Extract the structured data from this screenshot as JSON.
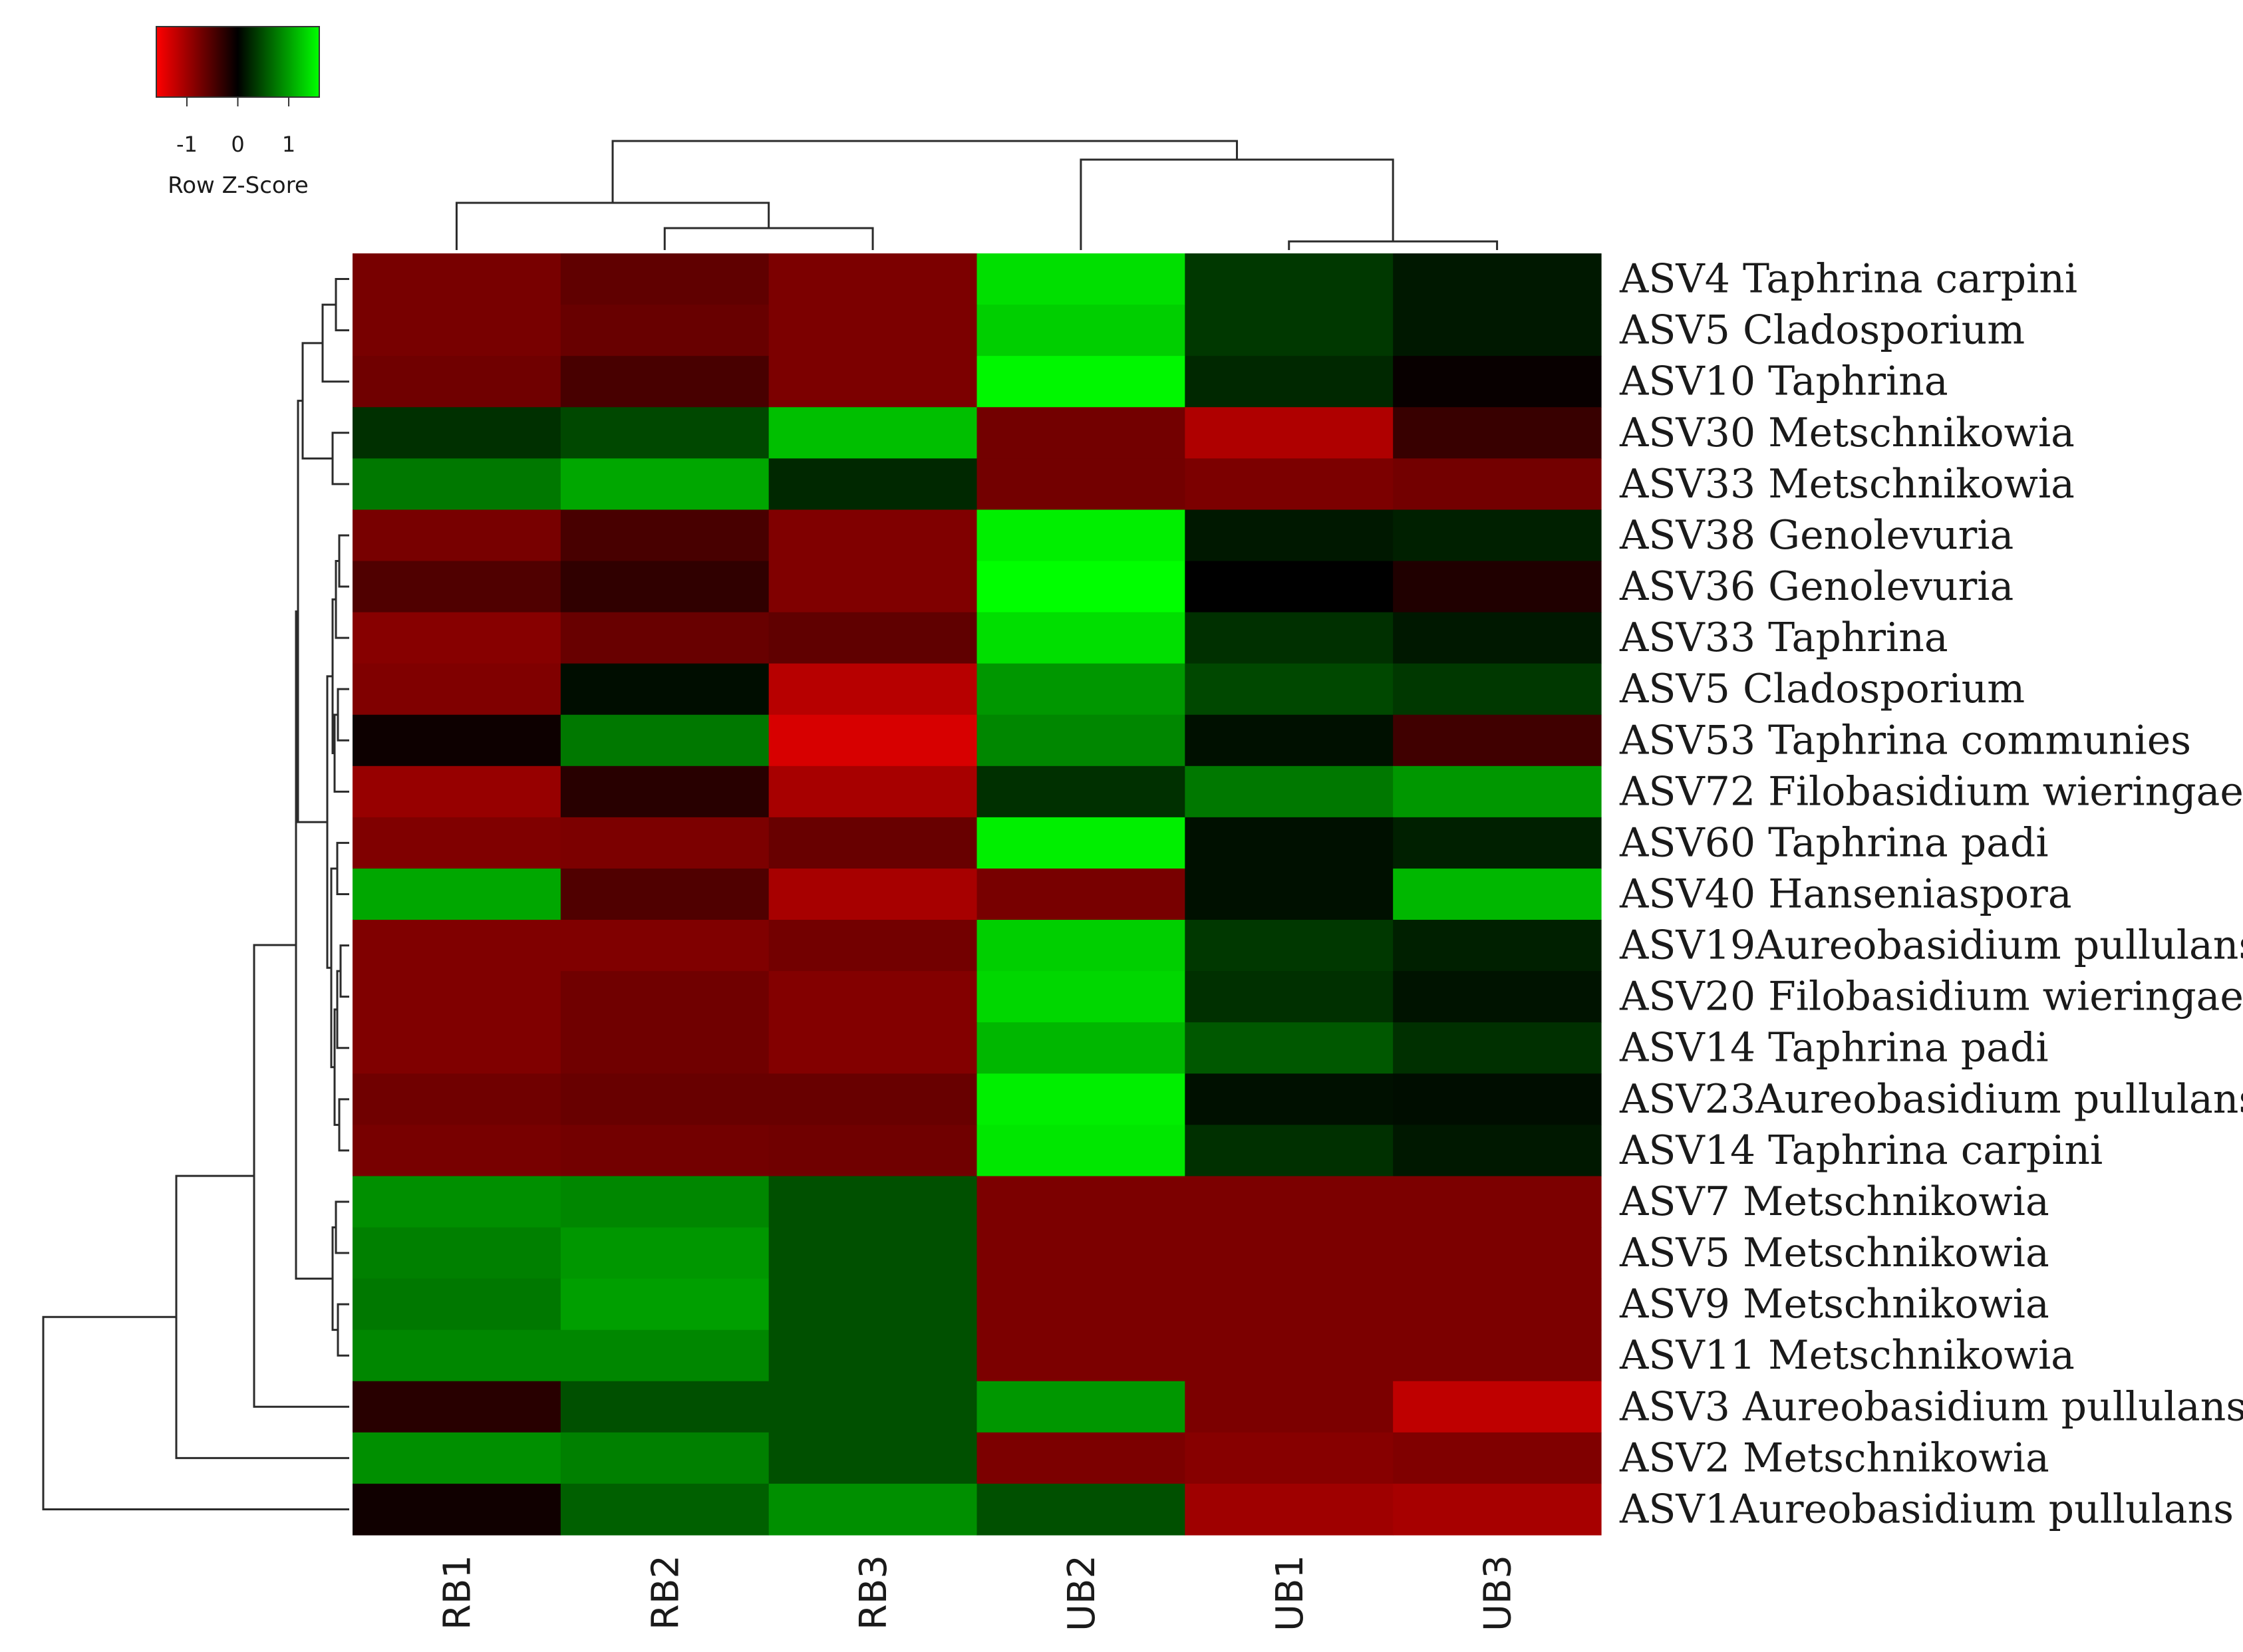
{
  "chart_data": {
    "type": "heatmap",
    "color_key": {
      "title": "Row Z-Score",
      "ticks": [
        "-1",
        "0",
        "1"
      ],
      "low_color": "#ff0000",
      "mid_color": "#000000",
      "high_color": "#00ff00",
      "range": [
        -1.6,
        1.6
      ]
    },
    "columns": [
      "RB1",
      "RB2",
      "RB3",
      "UB2",
      "UB1",
      "UB3"
    ],
    "rows": [
      "ASV4 Taphrina carpini",
      "ASV5 Cladosporium",
      "ASV10 Taphrina",
      "ASV30 Metschnikowia",
      "ASV33 Metschnikowia",
      "ASV38 Genolevuria",
      "ASV36 Genolevuria",
      "ASV33 Taphrina",
      "ASV5 Cladosporium",
      "ASV53 Taphrina communies",
      "ASV72 Filobasidium wieringae",
      "ASV60 Taphrina padi",
      "ASV40 Hanseniaspora",
      "ASV19Aureobasidium pullulans",
      "ASV20 Filobasidium wieringae",
      "ASV14 Taphrina padi",
      "ASV23Aureobasidium pullulans",
      "ASV14 Taphrina carpini",
      "ASV7 Metschnikowia",
      "ASV5 Metschnikowia",
      "ASV9 Metschnikowia",
      "ASV11 Metschnikowia",
      "ASV3 Aureobasidium pullulans",
      "ASV2 Metschnikowia",
      "ASV1Aureobasidium pullulans"
    ],
    "values": [
      [
        -0.75,
        -0.6,
        -0.78,
        1.4,
        0.35,
        0.15
      ],
      [
        -0.75,
        -0.65,
        -0.78,
        1.3,
        0.35,
        0.15
      ],
      [
        -0.7,
        -0.45,
        -0.78,
        1.55,
        0.25,
        -0.05
      ],
      [
        0.3,
        0.45,
        1.2,
        -0.72,
        -1.1,
        -0.35
      ],
      [
        0.75,
        1.05,
        0.25,
        -0.72,
        -0.78,
        -0.72
      ],
      [
        -0.75,
        -0.45,
        -0.8,
        1.5,
        0.15,
        0.2
      ],
      [
        -0.5,
        -0.3,
        -0.8,
        1.6,
        0.0,
        -0.2
      ],
      [
        -0.85,
        -0.65,
        -0.6,
        1.4,
        0.3,
        0.15
      ],
      [
        -0.8,
        0.08,
        -1.15,
        0.95,
        0.45,
        0.35
      ],
      [
        -0.08,
        0.75,
        -1.35,
        0.85,
        0.1,
        -0.4
      ],
      [
        -0.95,
        -0.25,
        -1.05,
        0.3,
        0.75,
        0.95
      ],
      [
        -0.8,
        -0.78,
        -0.65,
        1.5,
        0.1,
        0.2
      ],
      [
        1.05,
        -0.5,
        -1.05,
        -0.75,
        0.1,
        1.15
      ],
      [
        -0.8,
        -0.8,
        -0.72,
        1.3,
        0.35,
        0.2
      ],
      [
        -0.8,
        -0.7,
        -0.82,
        1.35,
        0.3,
        0.12
      ],
      [
        -0.8,
        -0.7,
        -0.82,
        1.15,
        0.55,
        0.3
      ],
      [
        -0.7,
        -0.65,
        -0.65,
        1.5,
        0.1,
        0.08
      ],
      [
        -0.75,
        -0.72,
        -0.7,
        1.45,
        0.3,
        0.15
      ],
      [
        0.9,
        0.85,
        0.5,
        -0.78,
        -0.78,
        -0.78
      ],
      [
        0.8,
        0.95,
        0.5,
        -0.78,
        -0.78,
        -0.78
      ],
      [
        0.75,
        1.0,
        0.5,
        -0.78,
        -0.78,
        -0.78
      ],
      [
        0.85,
        0.85,
        0.5,
        -0.78,
        -0.78,
        -0.78
      ],
      [
        -0.25,
        0.5,
        0.5,
        0.95,
        -0.78,
        -1.2
      ],
      [
        0.9,
        0.8,
        0.5,
        -0.78,
        -0.85,
        -0.8
      ],
      [
        -0.1,
        0.6,
        0.9,
        0.5,
        -1.0,
        -1.05
      ]
    ]
  }
}
